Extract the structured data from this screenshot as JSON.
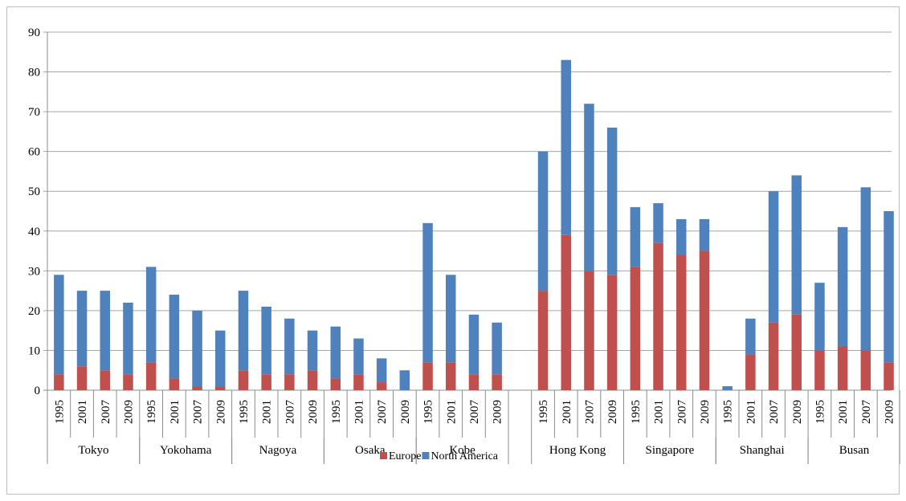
{
  "chart_data": {
    "type": "bar",
    "stacked": true,
    "title": "",
    "xlabel": "",
    "ylabel": "",
    "ylim": [
      0,
      90
    ],
    "yticks": [
      0,
      10,
      20,
      30,
      40,
      50,
      60,
      70,
      80,
      90
    ],
    "grid": true,
    "legend_position": "bottom",
    "groups": [
      {
        "name": "Tokyo",
        "years": [
          "1995",
          "2001",
          "2007",
          "2009"
        ]
      },
      {
        "name": "Yokohama",
        "years": [
          "1995",
          "2001",
          "2007",
          "2009"
        ]
      },
      {
        "name": "Nagoya",
        "years": [
          "1995",
          "2001",
          "2007",
          "2009"
        ]
      },
      {
        "name": "Osaka",
        "years": [
          "1995",
          "2001",
          "2007",
          "2009"
        ]
      },
      {
        "name": "Kobe",
        "years": [
          "1995",
          "2001",
          "2007",
          "2009"
        ]
      },
      {
        "name": "Hong Kong",
        "years": [
          "1995",
          "2001",
          "2007",
          "2009"
        ]
      },
      {
        "name": "Singapore",
        "years": [
          "1995",
          "2001",
          "2007",
          "2009"
        ]
      },
      {
        "name": "Shanghai",
        "years": [
          "1995",
          "2001",
          "2007",
          "2009"
        ]
      },
      {
        "name": "Busan",
        "years": [
          "1995",
          "2001",
          "2007",
          "2009"
        ]
      }
    ],
    "series": [
      {
        "name": "Europe",
        "color": "#c0504d",
        "values": [
          4,
          6,
          5,
          4,
          7,
          3,
          1,
          1,
          5,
          4,
          4,
          5,
          3,
          4,
          2,
          0,
          7,
          7,
          4,
          4,
          25,
          39,
          30,
          29,
          31,
          37,
          34,
          35,
          0,
          9,
          17,
          19,
          10,
          11,
          10,
          7
        ]
      },
      {
        "name": "North America",
        "color": "#4f81bd",
        "values": [
          25,
          19,
          20,
          18,
          24,
          21,
          19,
          14,
          20,
          17,
          14,
          10,
          13,
          9,
          6,
          5,
          35,
          22,
          15,
          13,
          35,
          44,
          42,
          37,
          15,
          10,
          9,
          8,
          1,
          9,
          33,
          35,
          17,
          30,
          41,
          38
        ]
      }
    ]
  }
}
